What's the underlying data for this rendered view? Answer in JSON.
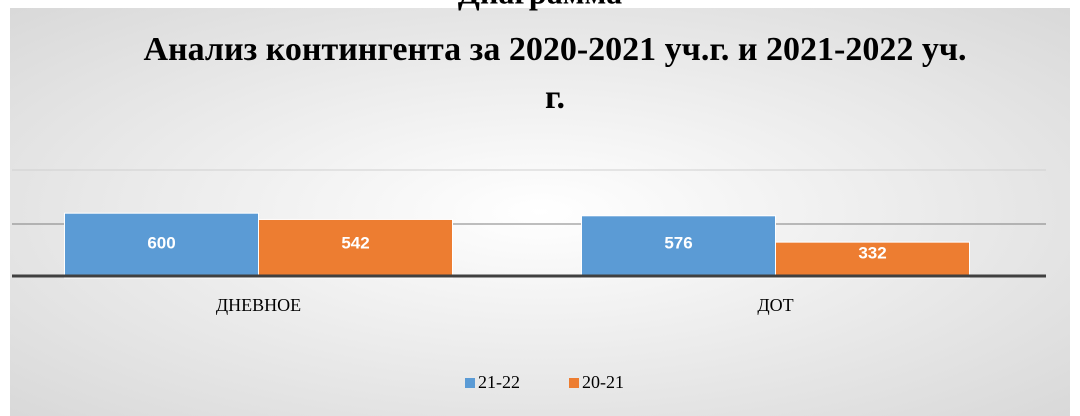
{
  "caption": "Диаграмма",
  "chart_data": {
    "type": "bar",
    "title": "Анализ контингента за 2020-2021 уч.г. и 2021-2022 уч. г.",
    "categories": [
      "ДНЕВНОЕ",
      "ДОТ"
    ],
    "series": [
      {
        "name": "21-22",
        "color": "#5b9bd5",
        "values": [
          600,
          576
        ]
      },
      {
        "name": "20-21",
        "color": "#ed7d31",
        "values": [
          542,
          332
        ]
      }
    ],
    "ylim": [
      0,
      1000
    ],
    "yticks": [
      0,
      500,
      1000
    ],
    "grid": true,
    "legend": "bottom"
  }
}
